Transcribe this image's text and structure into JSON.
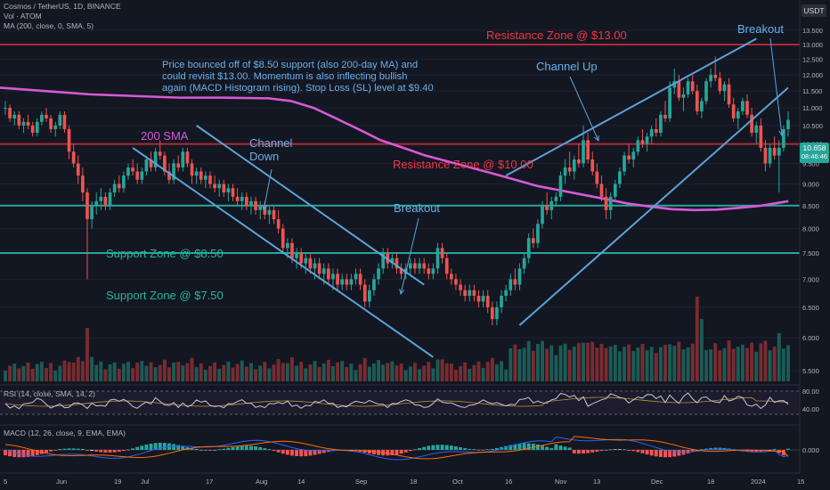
{
  "header": {
    "symbol_line": "Cosmos / TetherUS, 1D, BINANCE",
    "volume_line": "Vol · ATOM",
    "ma_line": "MA (200, close, 0, SMA, 5)",
    "currency_badge": "USDT"
  },
  "price_badge": {
    "value": "10.658",
    "countdown": "08:46:46"
  },
  "annotations": {
    "note": [
      "Price bounced off of $8.50 support (also 200-day MA) and",
      "could revisit $13.00. Momentum is also inflecting bullish",
      "again (MACD Histogram rising). Stop Loss (SL) level at $9.40"
    ],
    "resistance_13": "Resistance Zone @ $13.00",
    "resistance_10": "Resistance Zone @ $10.00",
    "support_850": "Support Zone @ $8.50",
    "support_750": "Support Zone @ $7.50",
    "sma_label": "200 SMA",
    "channel_down": [
      "Channel",
      "Down"
    ],
    "channel_up": "Channel Up",
    "breakout_1": "Breakout",
    "breakout_2": "Breakout"
  },
  "rsi": {
    "label": "RSI (14, close, SMA, 14, 2)",
    "levels": [
      "80.00",
      "40.00"
    ]
  },
  "macd": {
    "label": "MACD (12, 26, close, 9, EMA, EMA)",
    "zero_label": "0.000"
  },
  "colors": {
    "background": "#131722",
    "up": "#26a69a",
    "down": "#ef5350",
    "resistance": "#b22833",
    "support": "#26a69a",
    "channel": "#5ba3d9",
    "sma": "#d65ad6",
    "text_resistance": "#f23645",
    "text_support": "#26b4a0",
    "text_note": "#6ab0ea",
    "badge": "#26a69a"
  },
  "chart_data": {
    "type": "candlestick",
    "price_axis": {
      "ticks": [
        "13.500",
        "13.000",
        "12.500",
        "12.000",
        "11.500",
        "11.000",
        "10.500",
        "10.000",
        "9.500",
        "9.000",
        "8.500",
        "8.000",
        "7.500",
        "7.000",
        "6.500",
        "6.000",
        "5.500"
      ],
      "scale": "log"
    },
    "time_axis": [
      "5",
      "Jun",
      "19",
      "Jul",
      "17",
      "Aug",
      "14",
      "Sep",
      "18",
      "Oct",
      "16",
      "Nov",
      "13",
      "Dec",
      "18",
      "2024",
      "15"
    ],
    "horizontal_levels": [
      {
        "label": "Resistance Zone @ $13.00",
        "price": 13.0
      },
      {
        "label": "Resistance Zone @ $10.00",
        "price": 10.0
      },
      {
        "label": "Support Zone @ $8.50",
        "price": 8.5
      },
      {
        "label": "Support Zone @ $7.50",
        "price": 7.5
      }
    ],
    "candles": [
      [
        11.0,
        11.2,
        10.8,
        11.0
      ],
      [
        11.0,
        11.1,
        10.6,
        10.7
      ],
      [
        10.7,
        10.9,
        10.5,
        10.8
      ],
      [
        10.8,
        10.9,
        10.4,
        10.5
      ],
      [
        10.5,
        10.7,
        10.3,
        10.6
      ],
      [
        10.6,
        10.8,
        10.4,
        10.5
      ],
      [
        10.5,
        10.6,
        10.2,
        10.3
      ],
      [
        10.3,
        10.7,
        10.2,
        10.6
      ],
      [
        10.6,
        10.9,
        10.5,
        10.8
      ],
      [
        10.8,
        11.0,
        10.6,
        10.7
      ],
      [
        10.7,
        10.8,
        10.3,
        10.4
      ],
      [
        10.4,
        10.6,
        10.2,
        10.5
      ],
      [
        10.5,
        10.9,
        10.4,
        10.8
      ],
      [
        10.8,
        10.9,
        10.3,
        10.4
      ],
      [
        10.4,
        10.5,
        9.6,
        9.8
      ],
      [
        9.8,
        10.0,
        9.4,
        9.5
      ],
      [
        9.5,
        9.7,
        9.0,
        9.2
      ],
      [
        9.2,
        9.4,
        8.6,
        8.8
      ],
      [
        8.8,
        8.9,
        7.0,
        8.2
      ],
      [
        8.2,
        8.6,
        8.0,
        8.5
      ],
      [
        8.5,
        8.8,
        8.3,
        8.6
      ],
      [
        8.6,
        8.9,
        8.4,
        8.7
      ],
      [
        8.7,
        8.8,
        8.4,
        8.5
      ],
      [
        8.5,
        8.9,
        8.4,
        8.8
      ],
      [
        8.8,
        9.1,
        8.7,
        9.0
      ],
      [
        9.0,
        9.2,
        8.8,
        8.9
      ],
      [
        8.9,
        9.3,
        8.8,
        9.2
      ],
      [
        9.2,
        9.5,
        9.1,
        9.4
      ],
      [
        9.4,
        9.6,
        9.2,
        9.3
      ],
      [
        9.3,
        9.5,
        9.0,
        9.1
      ],
      [
        9.1,
        9.4,
        9.0,
        9.3
      ],
      [
        9.3,
        9.7,
        9.2,
        9.6
      ],
      [
        9.6,
        9.8,
        9.3,
        9.4
      ],
      [
        9.4,
        9.9,
        9.3,
        9.8
      ],
      [
        9.8,
        10.1,
        9.6,
        9.7
      ],
      [
        9.7,
        9.8,
        9.2,
        9.3
      ],
      [
        9.3,
        9.5,
        9.0,
        9.1
      ],
      [
        9.1,
        9.6,
        9.0,
        9.5
      ],
      [
        9.5,
        9.7,
        9.3,
        9.4
      ],
      [
        9.4,
        9.9,
        9.3,
        9.8
      ],
      [
        9.8,
        9.9,
        9.4,
        9.5
      ],
      [
        9.5,
        9.6,
        9.0,
        9.2
      ],
      [
        9.2,
        9.4,
        9.0,
        9.3
      ],
      [
        9.3,
        9.4,
        9.0,
        9.1
      ],
      [
        9.1,
        9.3,
        8.9,
        9.2
      ],
      [
        9.2,
        9.3,
        8.9,
        9.0
      ],
      [
        9.0,
        9.2,
        8.8,
        8.9
      ],
      [
        8.9,
        9.1,
        8.7,
        9.0
      ],
      [
        9.0,
        9.1,
        8.7,
        8.8
      ],
      [
        8.8,
        9.0,
        8.6,
        8.9
      ],
      [
        8.9,
        9.0,
        8.6,
        8.7
      ],
      [
        8.7,
        8.9,
        8.5,
        8.6
      ],
      [
        8.6,
        8.8,
        8.4,
        8.7
      ],
      [
        8.7,
        8.8,
        8.4,
        8.5
      ],
      [
        8.5,
        8.7,
        8.3,
        8.6
      ],
      [
        8.6,
        8.7,
        8.3,
        8.4
      ],
      [
        8.4,
        8.6,
        8.2,
        8.5
      ],
      [
        8.5,
        8.6,
        8.2,
        8.3
      ],
      [
        8.3,
        8.5,
        8.1,
        8.4
      ],
      [
        8.4,
        8.5,
        8.1,
        8.2
      ],
      [
        8.2,
        8.4,
        7.9,
        8.0
      ],
      [
        8.0,
        8.1,
        7.5,
        7.6
      ],
      [
        7.6,
        7.8,
        7.4,
        7.7
      ],
      [
        7.7,
        7.8,
        7.3,
        7.4
      ],
      [
        7.4,
        7.6,
        7.2,
        7.5
      ],
      [
        7.5,
        7.6,
        7.2,
        7.3
      ],
      [
        7.3,
        7.5,
        7.1,
        7.4
      ],
      [
        7.4,
        7.5,
        7.1,
        7.2
      ],
      [
        7.2,
        7.4,
        7.0,
        7.3
      ],
      [
        7.3,
        7.4,
        7.0,
        7.1
      ],
      [
        7.1,
        7.3,
        6.9,
        7.2
      ],
      [
        7.2,
        7.3,
        6.9,
        7.0
      ],
      [
        7.0,
        7.2,
        6.8,
        7.1
      ],
      [
        7.1,
        7.2,
        6.8,
        6.9
      ],
      [
        6.9,
        7.1,
        6.8,
        7.0
      ],
      [
        7.0,
        7.1,
        6.8,
        6.9
      ],
      [
        6.9,
        7.1,
        6.8,
        7.0
      ],
      [
        7.0,
        7.2,
        6.9,
        7.1
      ],
      [
        7.1,
        7.2,
        6.8,
        6.9
      ],
      [
        6.9,
        7.0,
        6.5,
        6.6
      ],
      [
        6.6,
        6.9,
        6.5,
        6.8
      ],
      [
        6.8,
        7.1,
        6.7,
        7.0
      ],
      [
        7.0,
        7.3,
        6.9,
        7.2
      ],
      [
        7.2,
        7.6,
        7.1,
        7.5
      ],
      [
        7.5,
        7.6,
        7.2,
        7.3
      ],
      [
        7.3,
        7.5,
        7.2,
        7.4
      ],
      [
        7.4,
        7.5,
        7.1,
        7.2
      ],
      [
        7.2,
        7.3,
        7.0,
        7.1
      ],
      [
        7.1,
        7.3,
        7.0,
        7.2
      ],
      [
        7.2,
        7.4,
        7.1,
        7.3
      ],
      [
        7.3,
        7.4,
        7.1,
        7.2
      ],
      [
        7.2,
        7.4,
        7.1,
        7.3
      ],
      [
        7.3,
        7.4,
        7.1,
        7.2
      ],
      [
        7.2,
        7.3,
        7.0,
        7.1
      ],
      [
        7.1,
        7.3,
        7.0,
        7.2
      ],
      [
        7.2,
        7.7,
        7.1,
        7.6
      ],
      [
        7.6,
        7.7,
        7.3,
        7.4
      ],
      [
        7.4,
        7.5,
        7.0,
        7.1
      ],
      [
        7.1,
        7.2,
        6.9,
        7.0
      ],
      [
        7.0,
        7.1,
        6.8,
        6.9
      ],
      [
        6.9,
        7.0,
        6.7,
        6.8
      ],
      [
        6.8,
        6.9,
        6.6,
        6.7
      ],
      [
        6.7,
        6.9,
        6.6,
        6.8
      ],
      [
        6.8,
        6.9,
        6.6,
        6.7
      ],
      [
        6.7,
        6.8,
        6.5,
        6.6
      ],
      [
        6.6,
        6.8,
        6.5,
        6.7
      ],
      [
        6.7,
        6.8,
        6.4,
        6.5
      ],
      [
        6.5,
        6.6,
        6.2,
        6.3
      ],
      [
        6.3,
        6.6,
        6.2,
        6.5
      ],
      [
        6.5,
        6.8,
        6.4,
        6.7
      ],
      [
        6.7,
        6.9,
        6.6,
        6.8
      ],
      [
        6.8,
        7.1,
        6.7,
        7.0
      ],
      [
        7.0,
        7.2,
        6.8,
        6.9
      ],
      [
        6.9,
        7.3,
        6.8,
        7.2
      ],
      [
        7.2,
        7.5,
        7.1,
        7.4
      ],
      [
        7.4,
        7.9,
        7.3,
        7.8
      ],
      [
        7.8,
        8.0,
        7.6,
        7.7
      ],
      [
        7.7,
        8.2,
        7.6,
        8.1
      ],
      [
        8.1,
        8.6,
        8.0,
        8.5
      ],
      [
        8.5,
        8.8,
        8.3,
        8.4
      ],
      [
        8.4,
        8.7,
        8.2,
        8.6
      ],
      [
        8.6,
        8.8,
        8.5,
        8.7
      ],
      [
        8.7,
        9.3,
        8.6,
        9.2
      ],
      [
        9.2,
        9.6,
        9.0,
        9.4
      ],
      [
        9.4,
        9.8,
        9.2,
        9.3
      ],
      [
        9.3,
        9.7,
        9.1,
        9.6
      ],
      [
        9.6,
        10.0,
        9.4,
        9.5
      ],
      [
        9.5,
        10.5,
        9.4,
        10.1
      ],
      [
        10.1,
        10.3,
        9.5,
        9.6
      ],
      [
        9.6,
        9.8,
        9.2,
        9.3
      ],
      [
        9.3,
        9.5,
        8.9,
        9.0
      ],
      [
        9.0,
        9.2,
        8.6,
        8.7
      ],
      [
        8.7,
        8.9,
        8.2,
        8.4
      ],
      [
        8.4,
        8.8,
        8.2,
        8.7
      ],
      [
        8.7,
        9.1,
        8.6,
        9.0
      ],
      [
        9.0,
        9.4,
        8.9,
        9.3
      ],
      [
        9.3,
        9.8,
        9.2,
        9.7
      ],
      [
        9.7,
        10.0,
        9.5,
        9.6
      ],
      [
        9.6,
        9.9,
        9.4,
        9.8
      ],
      [
        9.8,
        10.2,
        9.7,
        10.1
      ],
      [
        10.1,
        10.4,
        9.9,
        10.0
      ],
      [
        10.0,
        10.3,
        9.8,
        10.2
      ],
      [
        10.2,
        10.5,
        10.0,
        10.4
      ],
      [
        10.4,
        10.7,
        10.2,
        10.3
      ],
      [
        10.3,
        10.9,
        10.2,
        10.8
      ],
      [
        10.8,
        11.2,
        10.6,
        10.7
      ],
      [
        10.7,
        11.8,
        10.6,
        11.6
      ],
      [
        11.6,
        12.2,
        11.4,
        11.8
      ],
      [
        11.8,
        12.0,
        11.2,
        11.3
      ],
      [
        11.3,
        11.6,
        10.9,
        11.4
      ],
      [
        11.4,
        11.9,
        11.3,
        11.8
      ],
      [
        11.8,
        12.0,
        11.4,
        11.5
      ],
      [
        11.5,
        11.7,
        10.8,
        10.9
      ],
      [
        10.9,
        11.3,
        10.7,
        11.2
      ],
      [
        11.2,
        11.9,
        11.1,
        11.8
      ],
      [
        11.8,
        12.2,
        11.6,
        12.0
      ],
      [
        12.0,
        12.6,
        11.8,
        11.9
      ],
      [
        11.9,
        12.1,
        11.4,
        11.5
      ],
      [
        11.5,
        11.8,
        11.2,
        11.7
      ],
      [
        11.7,
        11.9,
        11.0,
        11.1
      ],
      [
        11.1,
        11.3,
        10.6,
        10.7
      ],
      [
        10.7,
        11.0,
        10.4,
        10.9
      ],
      [
        10.9,
        11.3,
        10.8,
        11.2
      ],
      [
        11.2,
        11.4,
        10.7,
        10.8
      ],
      [
        10.8,
        11.0,
        10.2,
        10.3
      ],
      [
        10.3,
        10.6,
        10.0,
        10.5
      ],
      [
        10.5,
        10.7,
        9.8,
        9.9
      ],
      [
        9.9,
        10.1,
        9.3,
        9.5
      ],
      [
        9.5,
        10.0,
        9.4,
        9.9
      ],
      [
        9.9,
        10.2,
        9.6,
        9.7
      ],
      [
        9.7,
        10.1,
        8.8,
        9.9
      ],
      [
        9.9,
        10.5,
        9.8,
        10.4
      ],
      [
        10.4,
        10.9,
        10.2,
        10.658
      ]
    ],
    "sma_200": [
      [
        0,
        11.6
      ],
      [
        10,
        11.5
      ],
      [
        20,
        11.4
      ],
      [
        30,
        11.35
      ],
      [
        40,
        11.3
      ],
      [
        50,
        11.3
      ],
      [
        60,
        11.28
      ],
      [
        65,
        11.2
      ],
      [
        70,
        11.0
      ],
      [
        75,
        10.7
      ],
      [
        80,
        10.4
      ],
      [
        85,
        10.1
      ],
      [
        90,
        9.9
      ],
      [
        95,
        9.7
      ],
      [
        100,
        9.55
      ],
      [
        105,
        9.4
      ],
      [
        110,
        9.25
      ],
      [
        115,
        9.1
      ],
      [
        120,
        8.95
      ],
      [
        125,
        8.85
      ],
      [
        130,
        8.75
      ],
      [
        135,
        8.65
      ],
      [
        140,
        8.55
      ],
      [
        145,
        8.48
      ],
      [
        150,
        8.42
      ],
      [
        155,
        8.4
      ],
      [
        160,
        8.41
      ],
      [
        165,
        8.45
      ],
      [
        170,
        8.5
      ],
      [
        176,
        8.6
      ]
    ],
    "channels": [
      {
        "name": "Channel Down",
        "lines": [
          [
            [
              42,
              10.5
            ],
            [
              92,
              6.9
            ]
          ],
          [
            [
              28,
              9.9
            ],
            [
              94,
              5.7
            ]
          ]
        ]
      },
      {
        "name": "Channel Up",
        "lines": [
          [
            [
              113,
              6.2
            ],
            [
              172,
              11.6
            ]
          ],
          [
            [
              110,
              9.2
            ],
            [
              165,
              13.2
            ]
          ]
        ]
      }
    ],
    "rsi_axis": [
      "80.00",
      "40.00"
    ],
    "macd_axis": [
      "0.000"
    ]
  }
}
